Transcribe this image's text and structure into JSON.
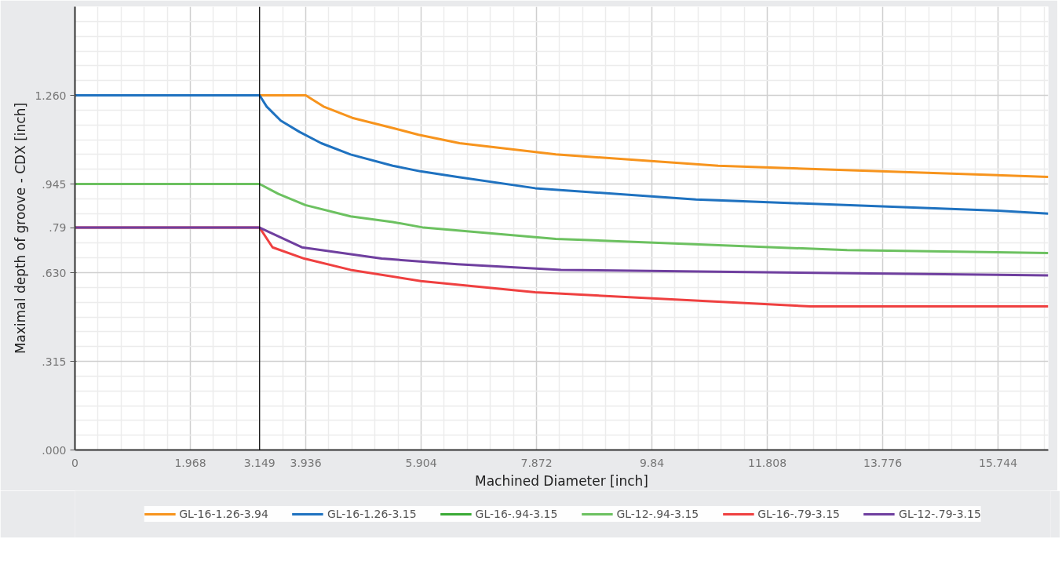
{
  "chart_data": {
    "type": "line",
    "xlabel": "Machined Diameter [inch]",
    "ylabel": "Maximal depth of groove - CDX [inch]",
    "xlim": [
      0,
      16.6
    ],
    "ylim": [
      0,
      1.575
    ],
    "xticks": [
      0,
      1.968,
      3.149,
      3.936,
      5.904,
      7.872,
      9.84,
      11.808,
      13.776,
      15.744
    ],
    "yticks": [
      {
        "value": 0,
        "label": ".000"
      },
      {
        "value": 0.315,
        "label": ".315"
      },
      {
        "value": 0.63,
        "label": ".630"
      },
      {
        "value": 0.79,
        "label": ".79"
      },
      {
        "value": 0.945,
        "label": ".945"
      },
      {
        "value": 1.26,
        "label": "1.260"
      }
    ],
    "grid": true,
    "legend": "bottom",
    "marker": "none",
    "line_style": "solid",
    "ref_lines": [
      {
        "axis": "x",
        "value": 3.149,
        "color": "#000000"
      }
    ],
    "series": [
      {
        "name": "GL-16-1.26-3.94",
        "color": "#f7941d",
        "x": [
          0,
          3.936,
          4.24,
          4.73,
          5.49,
          5.86,
          6.56,
          8.2,
          10.97,
          16.6
        ],
        "values": [
          1.26,
          1.26,
          1.22,
          1.18,
          1.14,
          1.12,
          1.09,
          1.05,
          1.01,
          0.97
        ]
      },
      {
        "name": "GL-16-1.26-3.15",
        "color": "#1f72c0",
        "x": [
          0,
          3.149,
          3.27,
          3.51,
          3.83,
          4.2,
          4.7,
          5.42,
          5.89,
          6.52,
          7.85,
          10.59,
          15.74,
          16.6
        ],
        "values": [
          1.26,
          1.26,
          1.22,
          1.17,
          1.13,
          1.09,
          1.05,
          1.01,
          0.99,
          0.97,
          0.93,
          0.89,
          0.85,
          0.84
        ]
      },
      {
        "name": "GL-16-.94-3.15",
        "color": "#3aaa35"
      },
      {
        "name": "GL-12-.94-3.15",
        "color": "#6cc160",
        "x": [
          0,
          3.149,
          3.47,
          3.93,
          4.7,
          5.42,
          5.95,
          8.2,
          13.17,
          16.6
        ],
        "values": [
          0.945,
          0.945,
          0.91,
          0.87,
          0.83,
          0.81,
          0.79,
          0.75,
          0.71,
          0.7
        ]
      },
      {
        "name": "GL-16-.79-3.15",
        "color": "#ef4040",
        "x": [
          0,
          3.149,
          3.37,
          3.91,
          4.7,
          5.9,
          7.85,
          12.55,
          16.6
        ],
        "values": [
          0.79,
          0.79,
          0.72,
          0.68,
          0.64,
          0.6,
          0.56,
          0.51,
          0.51
        ]
      },
      {
        "name": "GL-12-.79-3.15",
        "color": "#6f3f9f",
        "x": [
          0,
          3.149,
          3.87,
          5.23,
          6.52,
          8.29,
          16.6
        ],
        "values": [
          0.79,
          0.79,
          0.72,
          0.68,
          0.66,
          0.64,
          0.62
        ]
      }
    ]
  }
}
